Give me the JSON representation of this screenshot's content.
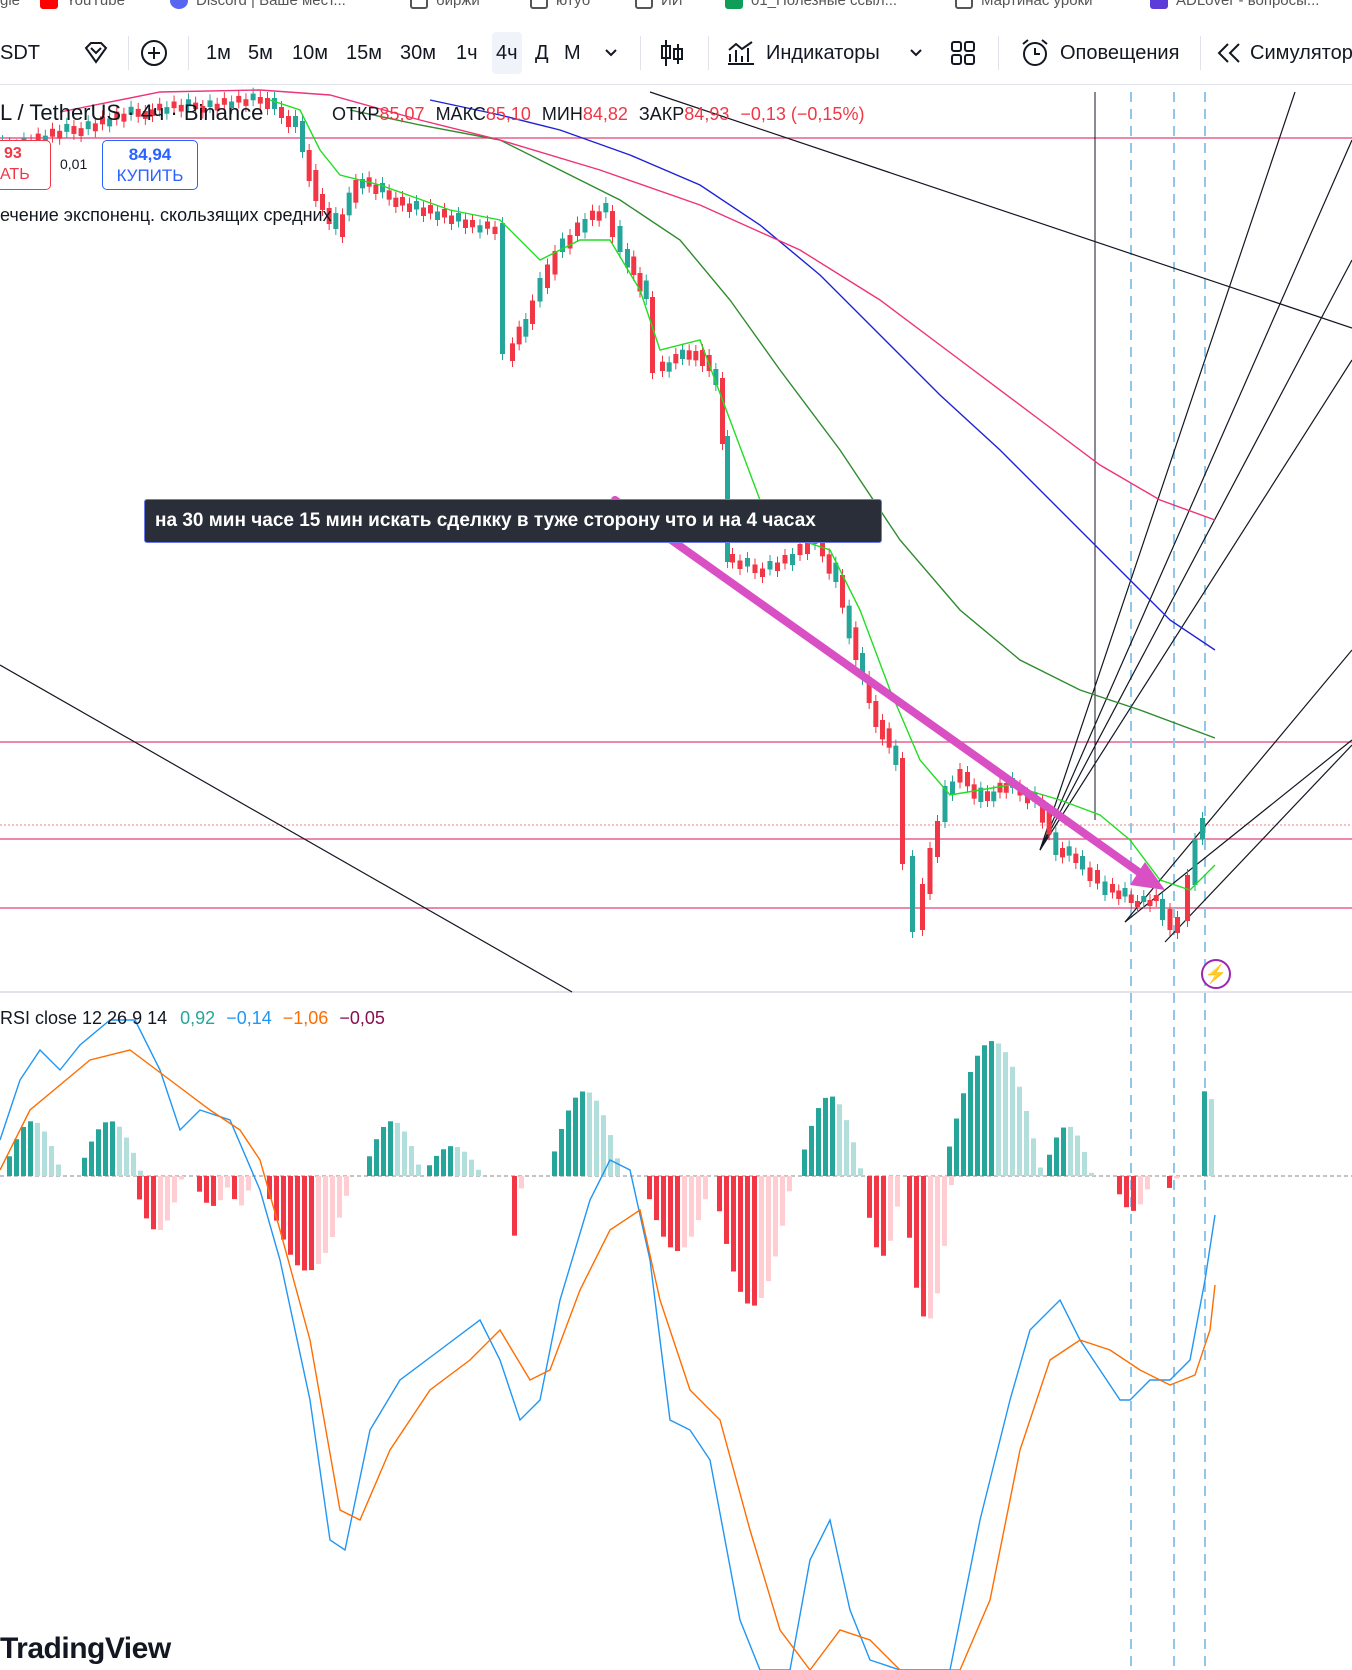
{
  "bookmarks": [
    {
      "label": "gle",
      "icon": "google-icon"
    },
    {
      "label": "YouTube",
      "icon": "youtube-icon"
    },
    {
      "label": "Discord | Ваше мест...",
      "icon": "discord-icon"
    },
    {
      "label": "биржи",
      "icon": "folder-icon"
    },
    {
      "label": "ютуб",
      "icon": "folder-icon"
    },
    {
      "label": "ИИ",
      "icon": "folder-icon"
    },
    {
      "label": "01_Полезные ссыл...",
      "icon": "sheets-icon"
    },
    {
      "label": "Мартинас уроки",
      "icon": "folder-icon"
    },
    {
      "label": "ADLover - вопросы...",
      "icon": "adlover-icon"
    }
  ],
  "toolbar": {
    "symbol": "SDT",
    "intervals": [
      "1м",
      "5м",
      "10м",
      "15м",
      "30м",
      "1ч",
      "4ч",
      "Д",
      "М"
    ],
    "selected_interval": "4ч",
    "indicators_label": "Индикаторы",
    "alerts_label": "Оповещения",
    "replay_label": "Симулятор"
  },
  "legend": {
    "title": "L / TetherUS · 4ч · Binance",
    "open_label": "ОТКР",
    "open": "85,07",
    "high_label": "МАКС",
    "high": "85,10",
    "low_label": "МИН",
    "low": "84,82",
    "close_label": "ЗАКР",
    "close": "84,93",
    "change": "−0,13 (−0,15%)"
  },
  "trade": {
    "sell_price": "93",
    "sell_label": "АТЬ",
    "spread": "0,01",
    "buy_price": "84,94",
    "buy_label": "КУПИТЬ"
  },
  "ema_label": "ечение экспоненц. скользящих средних",
  "note_text": "на 30 мин часе 15 мин искать сделкку в туже сторону что и на 4 часах",
  "macd": {
    "label": "RSI close 12 26 9 14",
    "v1": "0,92",
    "v2": "−0,14",
    "v3": "−1,06",
    "v4": "−0,05"
  },
  "logo": "TradingView",
  "colors": {
    "up": "#26a69a",
    "down": "#f23645",
    "up_light": "#b2dfdb",
    "down_light": "#ffcdd2",
    "ema_fast": "#22dd22",
    "ema_mid": "#2e8b2e",
    "ema_blue": "#1e22d6",
    "ema_pink": "#ee3377",
    "arrow": "#d94fc4",
    "macd_line": "#2196f3",
    "signal_line": "#ff6d00",
    "level": "#e0407a"
  }
}
